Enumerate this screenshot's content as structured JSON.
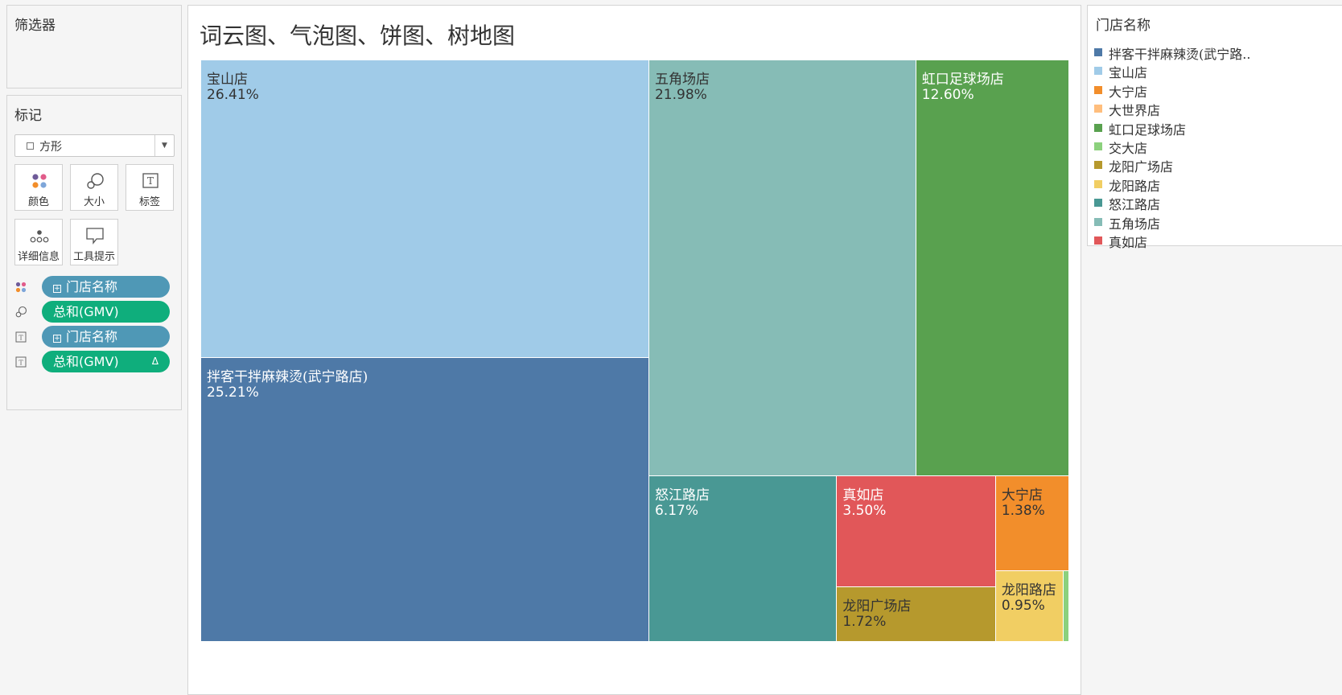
{
  "filters": {
    "title": "筛选器"
  },
  "marks": {
    "title": "标记",
    "mark_type": "方形",
    "cards": [
      {
        "label": "颜色",
        "icon": "color-dots-icon"
      },
      {
        "label": "大小",
        "icon": "size-circles-icon"
      },
      {
        "label": "标签",
        "icon": "text-label-icon"
      },
      {
        "label": "详细信息",
        "icon": "detail-dots-icon"
      },
      {
        "label": "工具提示",
        "icon": "tooltip-bubble-icon"
      }
    ],
    "pills": [
      {
        "field": "门店名称",
        "kind": "dimension",
        "role_icon": "color-dots-icon"
      },
      {
        "field": "总和(GMV)",
        "kind": "measure",
        "role_icon": "size-circles-icon"
      },
      {
        "field": "门店名称",
        "kind": "dimension",
        "role_icon": "text-label-icon"
      },
      {
        "field": "总和(GMV)",
        "kind": "measure",
        "role_icon": "text-label-icon",
        "flag": "Δ"
      }
    ]
  },
  "view": {
    "title": "词云图、气泡图、饼图、树地图"
  },
  "legend": {
    "title": "门店名称",
    "items": [
      {
        "label": "拌客干拌麻辣烫(武宁路..",
        "color": "#4e79a7"
      },
      {
        "label": "宝山店",
        "color": "#a0cbe8"
      },
      {
        "label": "大宁店",
        "color": "#f28e2b"
      },
      {
        "label": "大世界店",
        "color": "#ffbe7d"
      },
      {
        "label": "虹口足球场店",
        "color": "#59a14f"
      },
      {
        "label": "交大店",
        "color": "#8cd17d"
      },
      {
        "label": "龙阳广场店",
        "color": "#b6992d"
      },
      {
        "label": "龙阳路店",
        "color": "#f1ce63"
      },
      {
        "label": "怒江路店",
        "color": "#499894"
      },
      {
        "label": "五角场店",
        "color": "#86bcb6"
      },
      {
        "label": "真如店",
        "color": "#e15759"
      }
    ]
  },
  "chart_data": {
    "type": "treemap",
    "title": "词云图、气泡图、饼图、树地图",
    "measure": "总和(GMV)",
    "dimension": "门店名称",
    "cells": [
      {
        "name": "宝山店",
        "share_pct": 26.41,
        "label": "26.41%",
        "color": "#a0cbe8",
        "text": "lite"
      },
      {
        "name": "拌客干拌麻辣烫(武宁路店)",
        "share_pct": 25.21,
        "label": "25.21%",
        "color": "#4e79a7",
        "text": "dark"
      },
      {
        "name": "五角场店",
        "share_pct": 21.98,
        "label": "21.98%",
        "color": "#86bcb6",
        "text": "lite"
      },
      {
        "name": "虹口足球场店",
        "share_pct": 12.6,
        "label": "12.60%",
        "color": "#59a14f",
        "text": "dark"
      },
      {
        "name": "怒江路店",
        "share_pct": 6.17,
        "label": "6.17%",
        "color": "#499894",
        "text": "dark"
      },
      {
        "name": "真如店",
        "share_pct": 3.5,
        "label": "3.50%",
        "color": "#e15759",
        "text": "dark"
      },
      {
        "name": "龙阳广场店",
        "share_pct": 1.72,
        "label": "1.72%",
        "color": "#b6992d",
        "text": "lite"
      },
      {
        "name": "大宁店",
        "share_pct": 1.38,
        "label": "1.38%",
        "color": "#f28e2b",
        "text": "lite"
      },
      {
        "name": "龙阳路店",
        "share_pct": 0.95,
        "label": "0.95%",
        "color": "#f1ce63",
        "text": "lite"
      },
      {
        "name": "交大店",
        "share_pct": 0.08,
        "label": "",
        "color": "#8cd17d",
        "text": "lite"
      }
    ]
  }
}
